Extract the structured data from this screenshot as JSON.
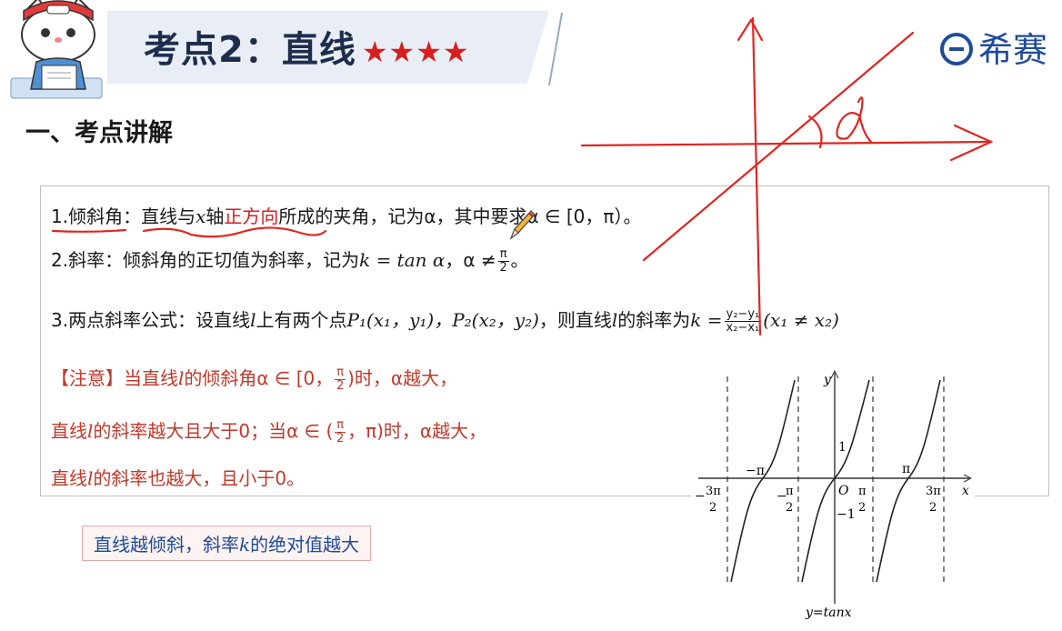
{
  "header": {
    "title": "考点2：直线",
    "stars": "★★★★",
    "brand": "希赛"
  },
  "section": {
    "heading": "一、考点讲解"
  },
  "content": {
    "l1_num": "1.",
    "l1_term": "倾斜角",
    "l1_a": "：直线与",
    "l1_x": "x",
    "l1_b": "轴",
    "l1_dir": "正方向",
    "l1_c": "所成的夹角，记为α，其中要求α ∈ [0，π）。",
    "l2_a": "2.斜率：倾斜角的正切值为斜率，记为",
    "l2_k": "k = tan α",
    "l2_b": "，α ≠",
    "l2_pi": "π",
    "l2_two": "2",
    "l2_c": "。",
    "l3_a": "3.两点斜率公式：设直线",
    "l3_l": "l",
    "l3_b": "上有两个点",
    "l3_p": "P₁(x₁，y₁)，P₂(x₂，y₂)",
    "l3_c": "，则直线",
    "l3_l2": "l",
    "l3_d": "的斜率为",
    "l3_k": "k =",
    "l3_num": "y₂−y₁",
    "l3_den": "x₂−x₁",
    "l3_e": "(x₁ ≠ x₂)",
    "n1_a": "【注意】当直线",
    "n1_l": "l",
    "n1_b": "的倾斜角α ∈ [0，",
    "n1_pi": "π",
    "n1_two": "2",
    "n1_c": ")时，α越大，",
    "n2_a": "直线",
    "n2_l": "l",
    "n2_b": "的斜率越大且大于0；当α ∈ (",
    "n2_pi": "π",
    "n2_two": "2",
    "n2_c": "，π)时，α越大，",
    "n3_a": "直线",
    "n3_l": "l",
    "n3_b": "的斜率也越大，且小于0。"
  },
  "tip": {
    "a": "直线越倾斜，斜率",
    "k": "k",
    "b": "的绝对值越大"
  },
  "graph": {
    "ylabel": "y",
    "xlabel": "x",
    "origin": "O",
    "one": "1",
    "neg_one": "−1",
    "neg_pi": "−π",
    "pi": "π",
    "neg_3pi2": "3π",
    "neg_3pi2_sign": "−",
    "neg_pi2": "π",
    "neg_pi2_sign": "−",
    "pi2": "π",
    "three_pi2": "3π",
    "two": "2",
    "caption": "y=tanx"
  },
  "annotation": {
    "alpha": "α"
  },
  "colors": {
    "accent_red": "#d81e1e",
    "brand_blue": "#1f4b9a",
    "ink_red": "#e0261f"
  }
}
